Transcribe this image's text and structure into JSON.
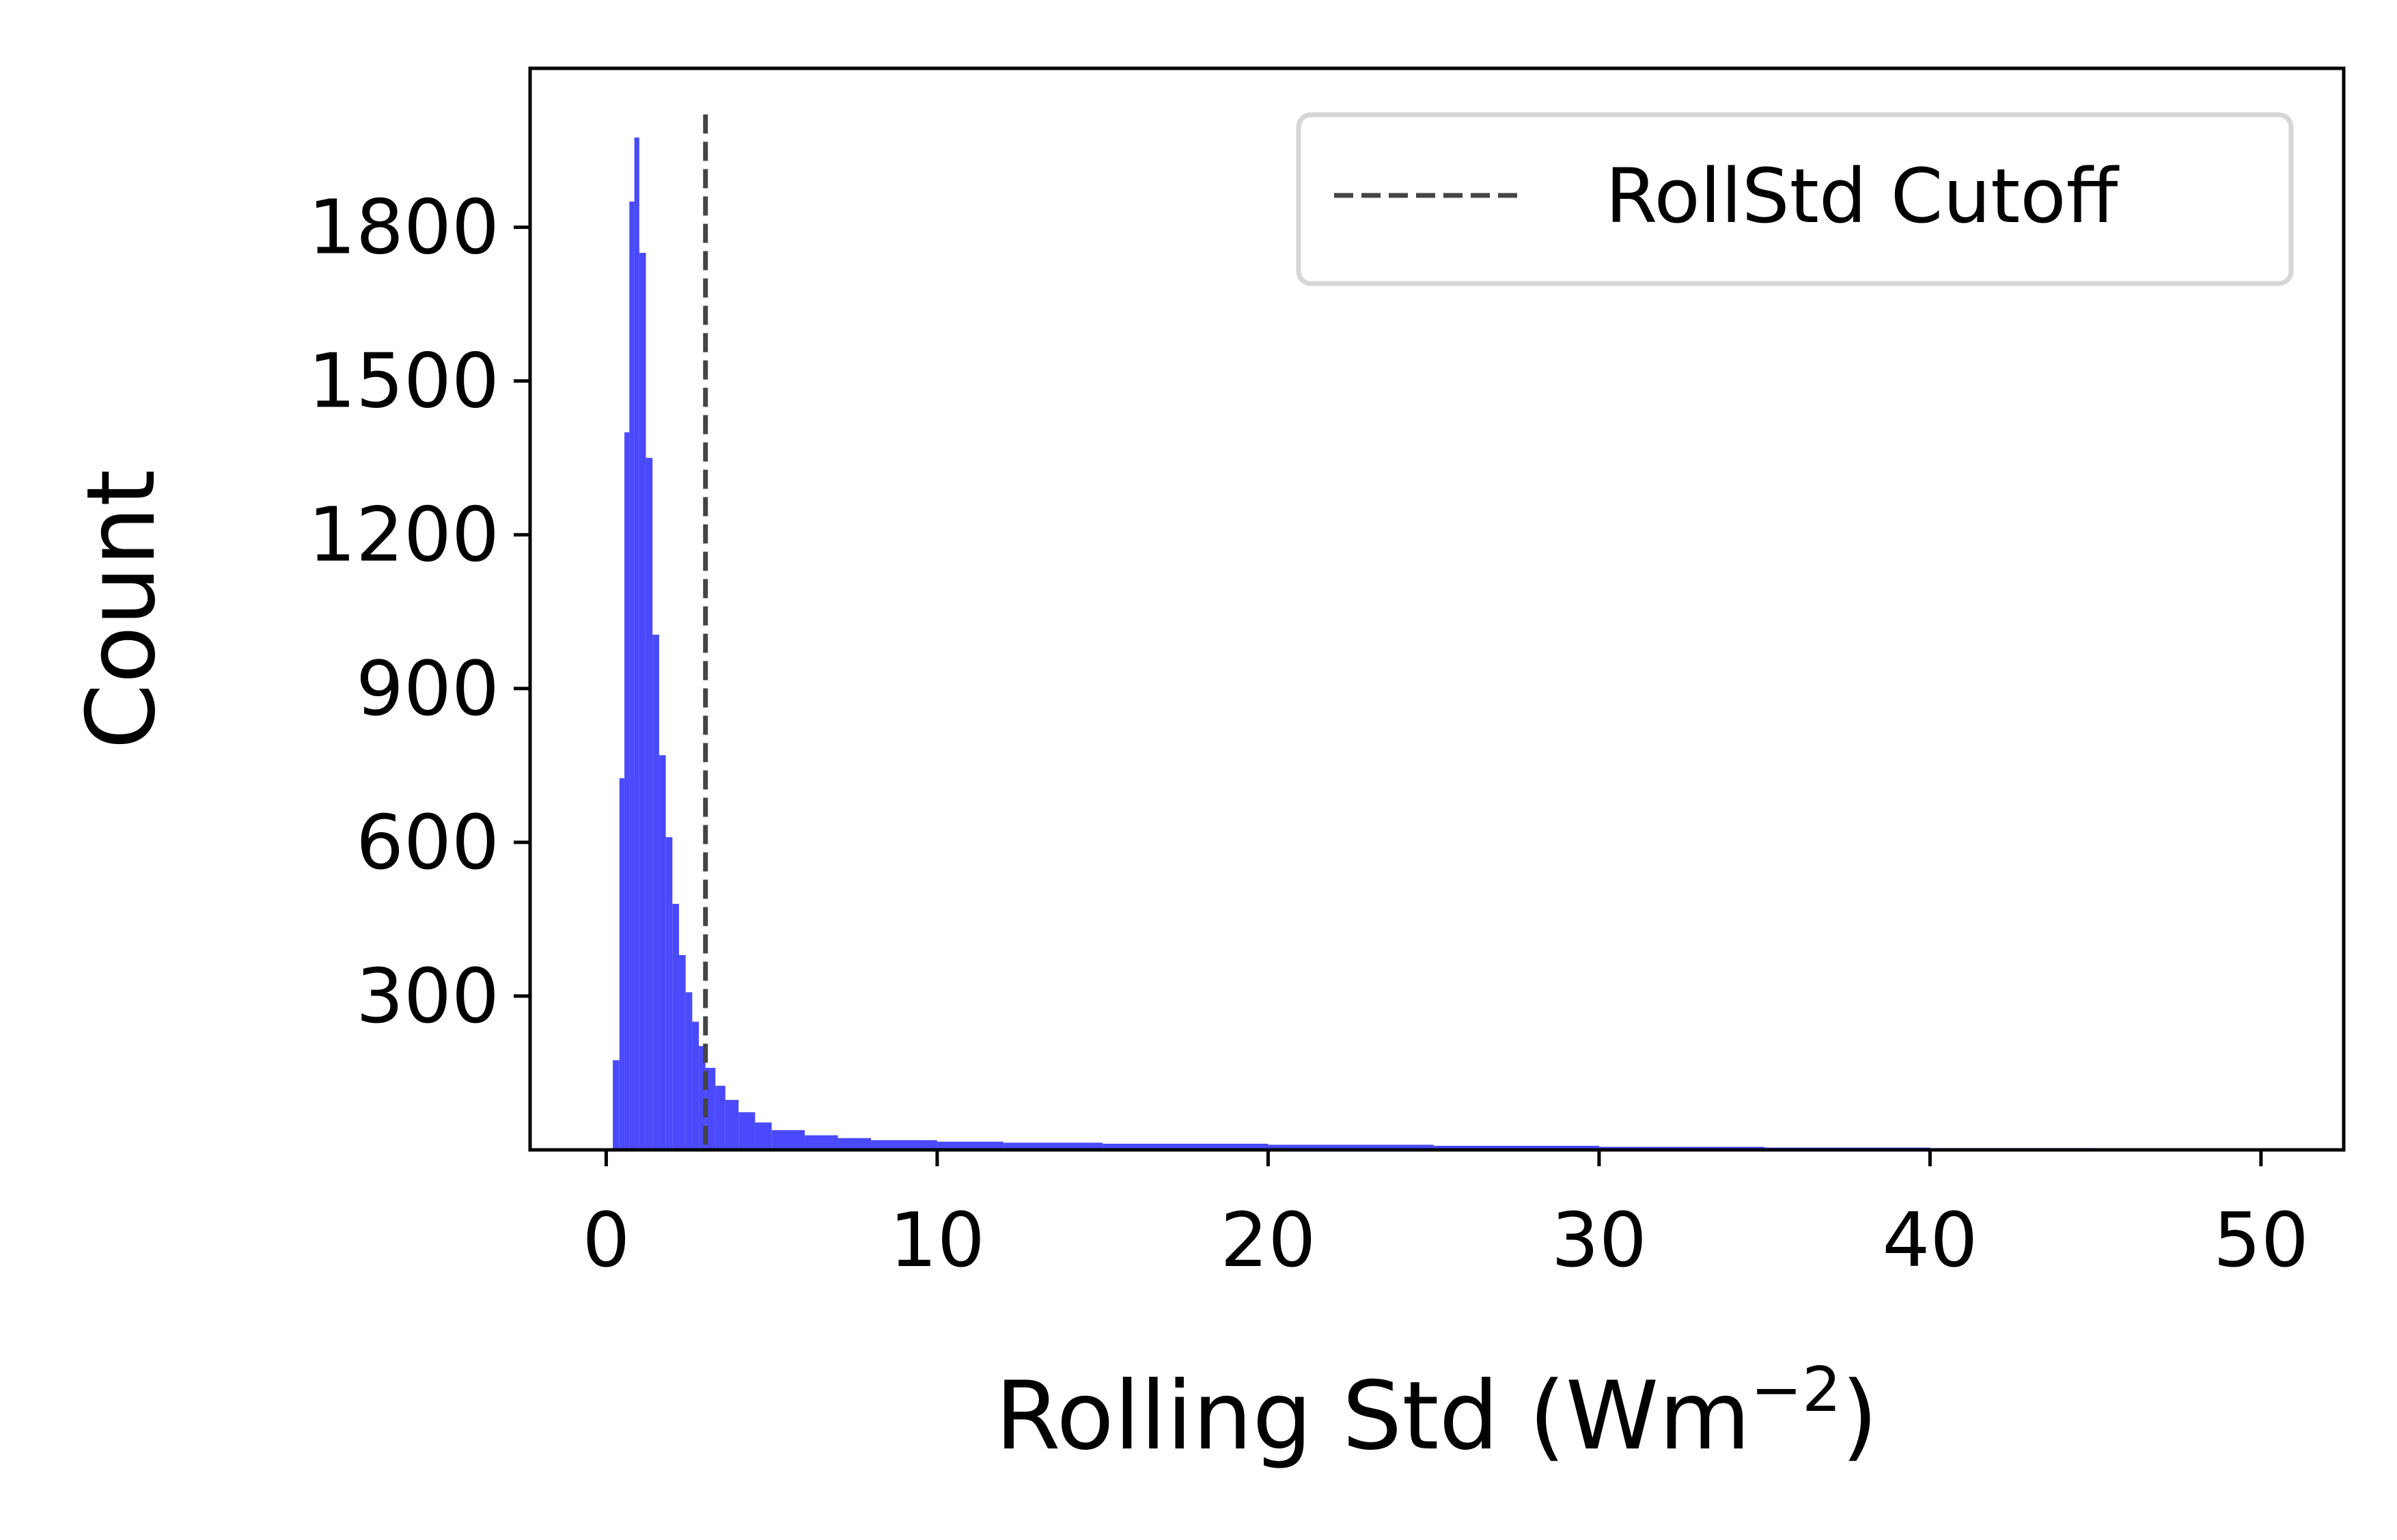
{
  "chart_data": {
    "type": "histogram",
    "title": "",
    "xlabel": "Rolling Std (Wm",
    "xlabel_sup": "−2",
    "xlabel_close": ")",
    "ylabel": "Count",
    "xlim": [
      -2.3,
      52.5
    ],
    "ylim": [
      0,
      2110
    ],
    "xticks": [
      0,
      10,
      20,
      30,
      40,
      50
    ],
    "yticks": [
      300,
      600,
      900,
      1200,
      1500,
      1800
    ],
    "grid": false,
    "legend_position": "top-right",
    "series": [
      {
        "name": "",
        "color": "#4a4afc",
        "kind": "bars",
        "points": [
          [
            0.2,
            0
          ],
          [
            0.4,
            350
          ],
          [
            0.55,
            1100
          ],
          [
            0.7,
            1700
          ],
          [
            0.85,
            2000
          ],
          [
            1.0,
            1950
          ],
          [
            1.2,
            1550
          ],
          [
            1.4,
            1150
          ],
          [
            1.6,
            860
          ],
          [
            1.8,
            680
          ],
          [
            2.0,
            540
          ],
          [
            2.2,
            420
          ],
          [
            2.4,
            340
          ],
          [
            2.6,
            275
          ],
          [
            2.8,
            225
          ],
          [
            3.0,
            180
          ],
          [
            3.3,
            140
          ],
          [
            3.6,
            110
          ],
          [
            4.0,
            85
          ],
          [
            4.5,
            62
          ],
          [
            5.0,
            45
          ],
          [
            6.0,
            32
          ],
          [
            7.0,
            25
          ],
          [
            8.0,
            21
          ],
          [
            10.0,
            17
          ],
          [
            12.0,
            15
          ],
          [
            15.0,
            13
          ],
          [
            20.0,
            11
          ],
          [
            25.0,
            9
          ],
          [
            30.0,
            7
          ],
          [
            35.0,
            5
          ],
          [
            40.0,
            4
          ],
          [
            45.0,
            3
          ],
          [
            49.5,
            2
          ]
        ]
      },
      {
        "name": "RollStd Cutoff",
        "color": "#444444",
        "kind": "vline",
        "x": 3.0,
        "y_range": [
          0,
          2020
        ]
      }
    ]
  }
}
